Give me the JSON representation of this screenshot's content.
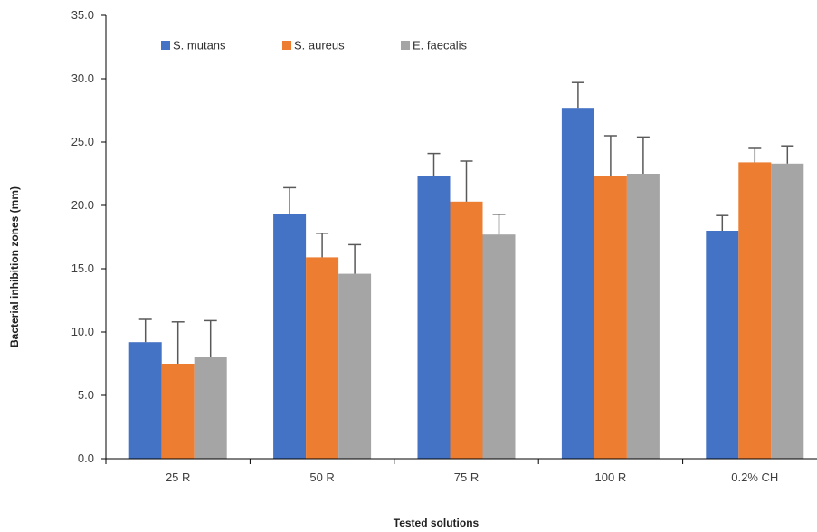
{
  "chart_data": {
    "type": "bar",
    "title": "",
    "xlabel": "Tested solutions",
    "ylabel": "Bacterial inhibition zones (mm)",
    "ylim": [
      0,
      35
    ],
    "ytick_step": 5,
    "ytick_labels": [
      "0.0",
      "5.0",
      "10.0",
      "15.0",
      "20.0",
      "25.0",
      "30.0",
      "35.0"
    ],
    "categories": [
      "25 R",
      "50 R",
      "75 R",
      "100 R",
      "0.2% CH"
    ],
    "legend_position": "top-left",
    "grid": false,
    "error_bars": true,
    "series": [
      {
        "name": "S. mutans",
        "color": "#4472C4",
        "values": [
          9.2,
          19.3,
          22.3,
          27.7,
          18.0
        ],
        "errors": [
          1.8,
          2.1,
          1.8,
          2.0,
          1.2
        ]
      },
      {
        "name": "S. aureus",
        "color": "#ED7D31",
        "values": [
          7.5,
          15.9,
          20.3,
          22.3,
          23.4
        ],
        "errors": [
          3.3,
          1.9,
          3.2,
          3.2,
          1.1
        ]
      },
      {
        "name": "E. faecalis",
        "color": "#A5A5A5",
        "values": [
          8.0,
          14.6,
          17.7,
          22.5,
          23.3
        ],
        "errors": [
          2.9,
          2.3,
          1.6,
          2.9,
          1.4
        ]
      }
    ]
  }
}
